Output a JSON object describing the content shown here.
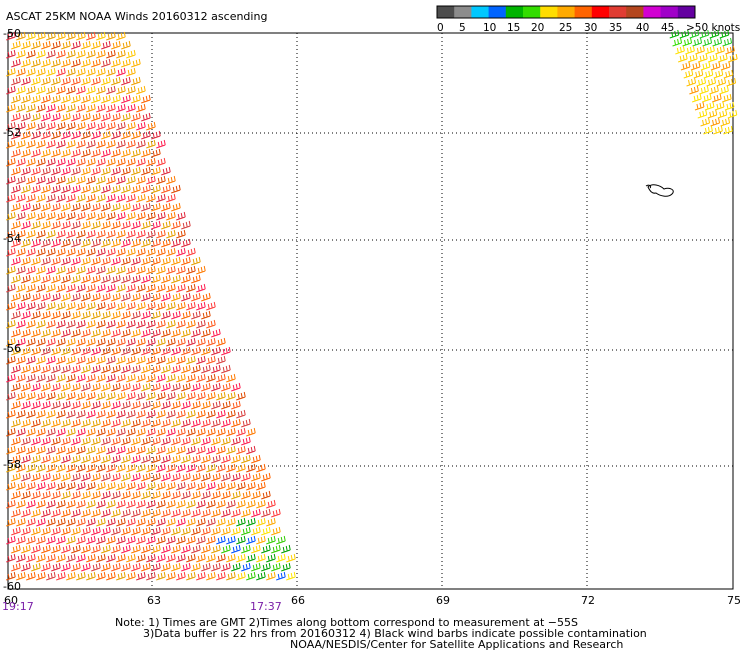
{
  "header": {
    "title": "ASCAT 25KM NOAA Winds 20160312 ascending"
  },
  "legend": {
    "colors": [
      "#4d4d4d",
      "#8c8c8c",
      "#00c8ff",
      "#0064ff",
      "#00b400",
      "#33dd00",
      "#ffdd00",
      "#ffaa00",
      "#ff6400",
      "#ff0000",
      "#e03c32",
      "#b4461e",
      "#d200d2",
      "#a000c8",
      "#6400a0"
    ],
    "labels": [
      "0",
      "5",
      "10",
      "15",
      "20",
      "25",
      "30",
      "35",
      "40",
      "45",
      ">50 knots"
    ]
  },
  "axes": {
    "lat_labels": [
      "-50",
      "-52",
      "-54",
      "-56",
      "-58",
      "-60"
    ],
    "lon_labels": [
      "60",
      "63",
      "66",
      "69",
      "72",
      "75"
    ]
  },
  "swath": {
    "time_start": "19:17",
    "time_end": "17:37"
  },
  "notes": {
    "line1": "Note: 1) Times are GMT 2)Times along bottom correspond to measurement at −55S",
    "line2": "3)Data buffer is 22 hrs from 20160312 4) Black wind barbs indicate possible contamination",
    "line3": "NOAA/NESDIS/Center for Satellite Applications and Research"
  }
}
